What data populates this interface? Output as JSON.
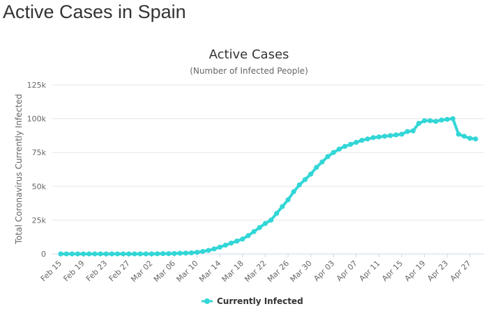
{
  "page": {
    "title": "Active Cases in Spain"
  },
  "chart_data": {
    "type": "line",
    "title": "Active Cases",
    "subtitle": "(Number of Infected People)",
    "xlabel": "",
    "ylabel": "Total Coronavirus Currently Infected",
    "ylim": [
      0,
      125000
    ],
    "y_ticks": [
      0,
      25000,
      50000,
      75000,
      100000,
      125000
    ],
    "y_tick_labels": [
      "0",
      "25k",
      "50k",
      "75k",
      "100k",
      "125k"
    ],
    "x_tick_labels": [
      "Feb 15",
      "Feb 19",
      "Feb 23",
      "Feb 27",
      "Mar 02",
      "Mar 06",
      "Mar 10",
      "Mar 14",
      "Mar 18",
      "Mar 22",
      "Mar 26",
      "Mar 30",
      "Apr 03",
      "Apr 07",
      "Apr 11",
      "Apr 15",
      "Apr 19",
      "Apr 23",
      "Apr 27"
    ],
    "grid": true,
    "legend_position": "bottom-center",
    "colors": {
      "series": "#33d6d6",
      "grid": "#e6e6e6",
      "axis": "#ccd6eb"
    },
    "x": [
      "Feb 15",
      "Feb 16",
      "Feb 17",
      "Feb 18",
      "Feb 19",
      "Feb 20",
      "Feb 21",
      "Feb 22",
      "Feb 23",
      "Feb 24",
      "Feb 25",
      "Feb 26",
      "Feb 27",
      "Feb 28",
      "Feb 29",
      "Mar 01",
      "Mar 02",
      "Mar 03",
      "Mar 04",
      "Mar 05",
      "Mar 06",
      "Mar 07",
      "Mar 08",
      "Mar 09",
      "Mar 10",
      "Mar 11",
      "Mar 12",
      "Mar 13",
      "Mar 14",
      "Mar 15",
      "Mar 16",
      "Mar 17",
      "Mar 18",
      "Mar 19",
      "Mar 20",
      "Mar 21",
      "Mar 22",
      "Mar 23",
      "Mar 24",
      "Mar 25",
      "Mar 26",
      "Mar 27",
      "Mar 28",
      "Mar 29",
      "Mar 30",
      "Mar 31",
      "Apr 01",
      "Apr 02",
      "Apr 03",
      "Apr 04",
      "Apr 05",
      "Apr 06",
      "Apr 07",
      "Apr 08",
      "Apr 09",
      "Apr 10",
      "Apr 11",
      "Apr 12",
      "Apr 13",
      "Apr 14",
      "Apr 15",
      "Apr 16",
      "Apr 17",
      "Apr 18",
      "Apr 19",
      "Apr 20",
      "Apr 21",
      "Apr 22",
      "Apr 23",
      "Apr 24",
      "Apr 25",
      "Apr 26",
      "Apr 27",
      "Apr 28"
    ],
    "series": [
      {
        "name": "Currently Infected",
        "values": [
          0,
          0,
          0,
          0,
          0,
          0,
          0,
          0,
          0,
          0,
          0,
          0,
          0,
          0,
          0,
          0,
          0,
          100,
          200,
          200,
          300,
          500,
          600,
          800,
          1200,
          1800,
          2600,
          3700,
          5000,
          6500,
          8000,
          9500,
          11000,
          13500,
          16500,
          19500,
          22500,
          25000,
          30000,
          35000,
          40000,
          46000,
          51000,
          55000,
          59000,
          64000,
          68000,
          72000,
          75000,
          77500,
          79500,
          81000,
          82500,
          84000,
          85000,
          86000,
          86500,
          87000,
          87500,
          88000,
          88500,
          90500,
          91000,
          96500,
          98500,
          98500,
          98000,
          99000,
          99500,
          100000,
          88500,
          87000,
          85500,
          85000
        ]
      }
    ]
  }
}
